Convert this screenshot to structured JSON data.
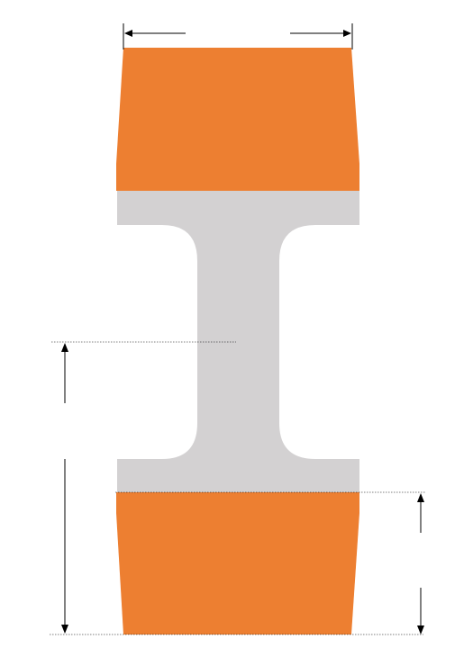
{
  "colors": {
    "background": "#ffffff",
    "cap": "#ED7F31",
    "core": "#D3D1D2",
    "dimension_line": "#000000"
  },
  "components": {
    "top_cap": {
      "label": ""
    },
    "bottom_cap": {
      "label": ""
    },
    "i_section": {
      "label": ""
    }
  },
  "dimensions": {
    "top_width": {
      "label": ""
    },
    "left_height": {
      "label": ""
    },
    "right_height": {
      "label": ""
    }
  }
}
